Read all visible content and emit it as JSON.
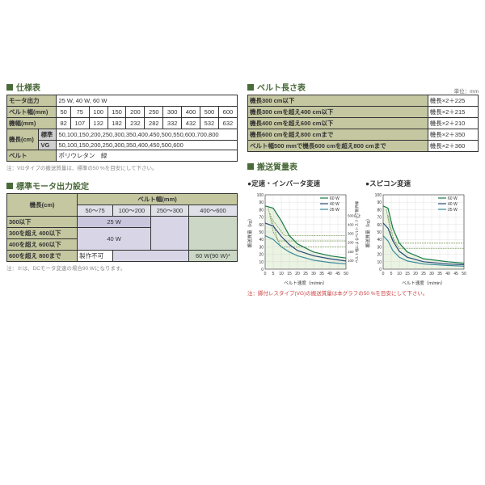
{
  "specHeader": "仕様表",
  "specTable": {
    "rows": [
      {
        "h": "モータ出力",
        "v": "25 W, 40 W, 60 W"
      },
      {
        "h": "ベルト幅(mm)",
        "cells": [
          "50",
          "75",
          "100",
          "150",
          "200",
          "250",
          "300",
          "400",
          "500",
          "600"
        ]
      },
      {
        "h": "機幅(mm)",
        "cells": [
          "82",
          "107",
          "132",
          "182",
          "232",
          "282",
          "332",
          "432",
          "532",
          "632"
        ]
      },
      {
        "h": "機長(cm)",
        "sub": "標準",
        "v": "50,100,150,200,250,300,350,400,450,500,550,600,700,800"
      },
      {
        "h": "",
        "sub": "VG",
        "v": "50,100,150,200,250,300,350,400,450,500,600"
      },
      {
        "h": "ベルト",
        "v": "ポリウレタン　緑"
      }
    ],
    "note": "注：VGタイプの搬送質量は、標準の50 %を目安にして下さい。"
  },
  "motorHeader": "標準モータ出力設定",
  "motorTable": {
    "rowHeader": "機長(cm)",
    "colHeader": "ベルト幅(mm)",
    "cols": [
      "50～75",
      "100～200",
      "250～300",
      "400～600"
    ],
    "rows": [
      {
        "h": "300以下",
        "cells": [
          {
            "v": "25 W",
            "span": 2,
            "c": "motor-cell"
          },
          null,
          {
            "v": "",
            "span": 1,
            "c": "motor-cell2",
            "rspan": 3
          },
          {
            "v": "",
            "span": 1,
            "c": "motor-green",
            "rspan": 3
          }
        ]
      },
      {
        "h": "300を超え 400以下",
        "cells": [
          {
            "v": "40 W",
            "span": 2,
            "c": "motor-cell2",
            "rspan": 2
          }
        ]
      },
      {
        "h": "400を超え 600以下",
        "cells": []
      },
      {
        "h": "600を超え 800まで",
        "cells": [
          {
            "v": "製作不可",
            "span": 1,
            "c": "motor-na"
          },
          {
            "v": "",
            "span": 2,
            "c": "motor-cell2"
          },
          {
            "v": "60 W(90 W)*",
            "span": 1,
            "c": "motor-green"
          }
        ]
      }
    ],
    "note": "注：※は、DCモータ変速の場合90 Wになります。"
  },
  "beltHeader": "ベルト長さ表",
  "beltUnit": "単位：mm",
  "beltTable": [
    {
      "h": "機長300 cm以下",
      "v": "機長×2＋225"
    },
    {
      "h": "機長300 cmを超え400 cm以下",
      "v": "機長×2＋215"
    },
    {
      "h": "機長400 cmを超え600 cm以下",
      "v": "機長×2＋210"
    },
    {
      "h": "機長600 cmを超え800 cmまで",
      "v": "機長×2＋350"
    },
    {
      "h": "ベルト幅500 mmで機長600 cmを超え800 cmまで",
      "v": "機長×2＋360"
    }
  ],
  "transHeader": "搬送質量表",
  "chart1": {
    "title": "●定速・インバータ変速",
    "xlabel": "ベルト速度（m/min）",
    "ylabel_left": "搬送質量（kg）",
    "ylabel_right": "ベルト幅によるベルトスリップ限界線",
    "yticks": [
      0,
      10,
      20,
      30,
      40,
      50,
      60,
      70,
      80,
      90,
      100
    ],
    "xticks": [
      0,
      5,
      10,
      15,
      20,
      25,
      30,
      35,
      40,
      45,
      50
    ],
    "y2ticks": [
      100,
      150,
      200,
      300,
      400,
      "500以上"
    ],
    "legend": [
      {
        "label": "60 W",
        "color": "#1a7a4a"
      },
      {
        "label": "40 W",
        "color": "#2a4a7a"
      },
      {
        "label": "25 W",
        "color": "#3a8a9a"
      }
    ],
    "series": [
      {
        "color": "#1a7a4a",
        "pts": [
          [
            0,
            85
          ],
          [
            5,
            82
          ],
          [
            10,
            65
          ],
          [
            15,
            45
          ],
          [
            20,
            34
          ],
          [
            30,
            23
          ],
          [
            40,
            18
          ],
          [
            50,
            15
          ]
        ]
      },
      {
        "color": "#2a4a7a",
        "pts": [
          [
            0,
            62
          ],
          [
            5,
            58
          ],
          [
            10,
            44
          ],
          [
            15,
            33
          ],
          [
            20,
            25
          ],
          [
            30,
            18
          ],
          [
            40,
            14
          ],
          [
            50,
            11
          ]
        ]
      },
      {
        "color": "#3a8a9a",
        "pts": [
          [
            0,
            45
          ],
          [
            5,
            40
          ],
          [
            10,
            30
          ],
          [
            15,
            23
          ],
          [
            20,
            18
          ],
          [
            30,
            12
          ],
          [
            40,
            9
          ],
          [
            50,
            7
          ]
        ]
      }
    ],
    "dashed": [
      {
        "color": "#7a9a5a",
        "pts": [
          [
            2,
            82
          ],
          [
            5,
            50
          ],
          [
            10,
            30
          ],
          [
            50,
            30
          ]
        ]
      },
      {
        "color": "#7a9a5a",
        "pts": [
          [
            3,
            75
          ],
          [
            8,
            38
          ],
          [
            50,
            38
          ]
        ]
      },
      {
        "color": "#7a9a5a",
        "pts": [
          [
            4,
            68
          ],
          [
            12,
            45
          ],
          [
            50,
            45
          ]
        ]
      }
    ],
    "fill_color": "#d8e8c8"
  },
  "chart2": {
    "title": "●スピコン変速",
    "xlabel": "ベルト速度（m/min）",
    "ylabel_left": "搬送質量（kg）",
    "yticks": [
      0,
      10,
      20,
      30,
      40,
      50,
      60,
      70,
      80,
      90,
      100
    ],
    "xticks": [
      0,
      5,
      10,
      15,
      20,
      25,
      30,
      35,
      40,
      45,
      50
    ],
    "legend": [
      {
        "label": "60 W",
        "color": "#1a7a4a"
      },
      {
        "label": "40 W",
        "color": "#2a4a7a"
      },
      {
        "label": "25 W",
        "color": "#3a8a9a"
      }
    ],
    "series": [
      {
        "color": "#1a7a4a",
        "pts": [
          [
            0,
            85
          ],
          [
            3,
            82
          ],
          [
            6,
            55
          ],
          [
            10,
            35
          ],
          [
            15,
            23
          ],
          [
            25,
            14
          ],
          [
            40,
            10
          ],
          [
            50,
            8
          ]
        ]
      },
      {
        "color": "#2a4a7a",
        "pts": [
          [
            0,
            62
          ],
          [
            3,
            55
          ],
          [
            6,
            38
          ],
          [
            10,
            24
          ],
          [
            15,
            16
          ],
          [
            25,
            10
          ],
          [
            40,
            7
          ],
          [
            50,
            6
          ]
        ]
      },
      {
        "color": "#3a8a9a",
        "pts": [
          [
            0,
            45
          ],
          [
            3,
            38
          ],
          [
            6,
            25
          ],
          [
            10,
            16
          ],
          [
            15,
            11
          ],
          [
            25,
            7
          ],
          [
            40,
            5
          ],
          [
            50,
            4
          ]
        ]
      }
    ],
    "dashed": [
      {
        "color": "#7a9a5a",
        "pts": [
          [
            2,
            80
          ],
          [
            5,
            45
          ],
          [
            10,
            28
          ],
          [
            50,
            28
          ]
        ]
      },
      {
        "color": "#7a9a5a",
        "pts": [
          [
            3,
            72
          ],
          [
            7,
            35
          ],
          [
            50,
            35
          ]
        ]
      }
    ],
    "fill_color": "#d8e8c8"
  },
  "chartNote": "注：脚付レスタイプ(VG)の搬送質量は本グラフの50 %を目安にして下さい。",
  "colors": {
    "accent": "#4a6a3a",
    "olive": "#c5c7a0"
  }
}
